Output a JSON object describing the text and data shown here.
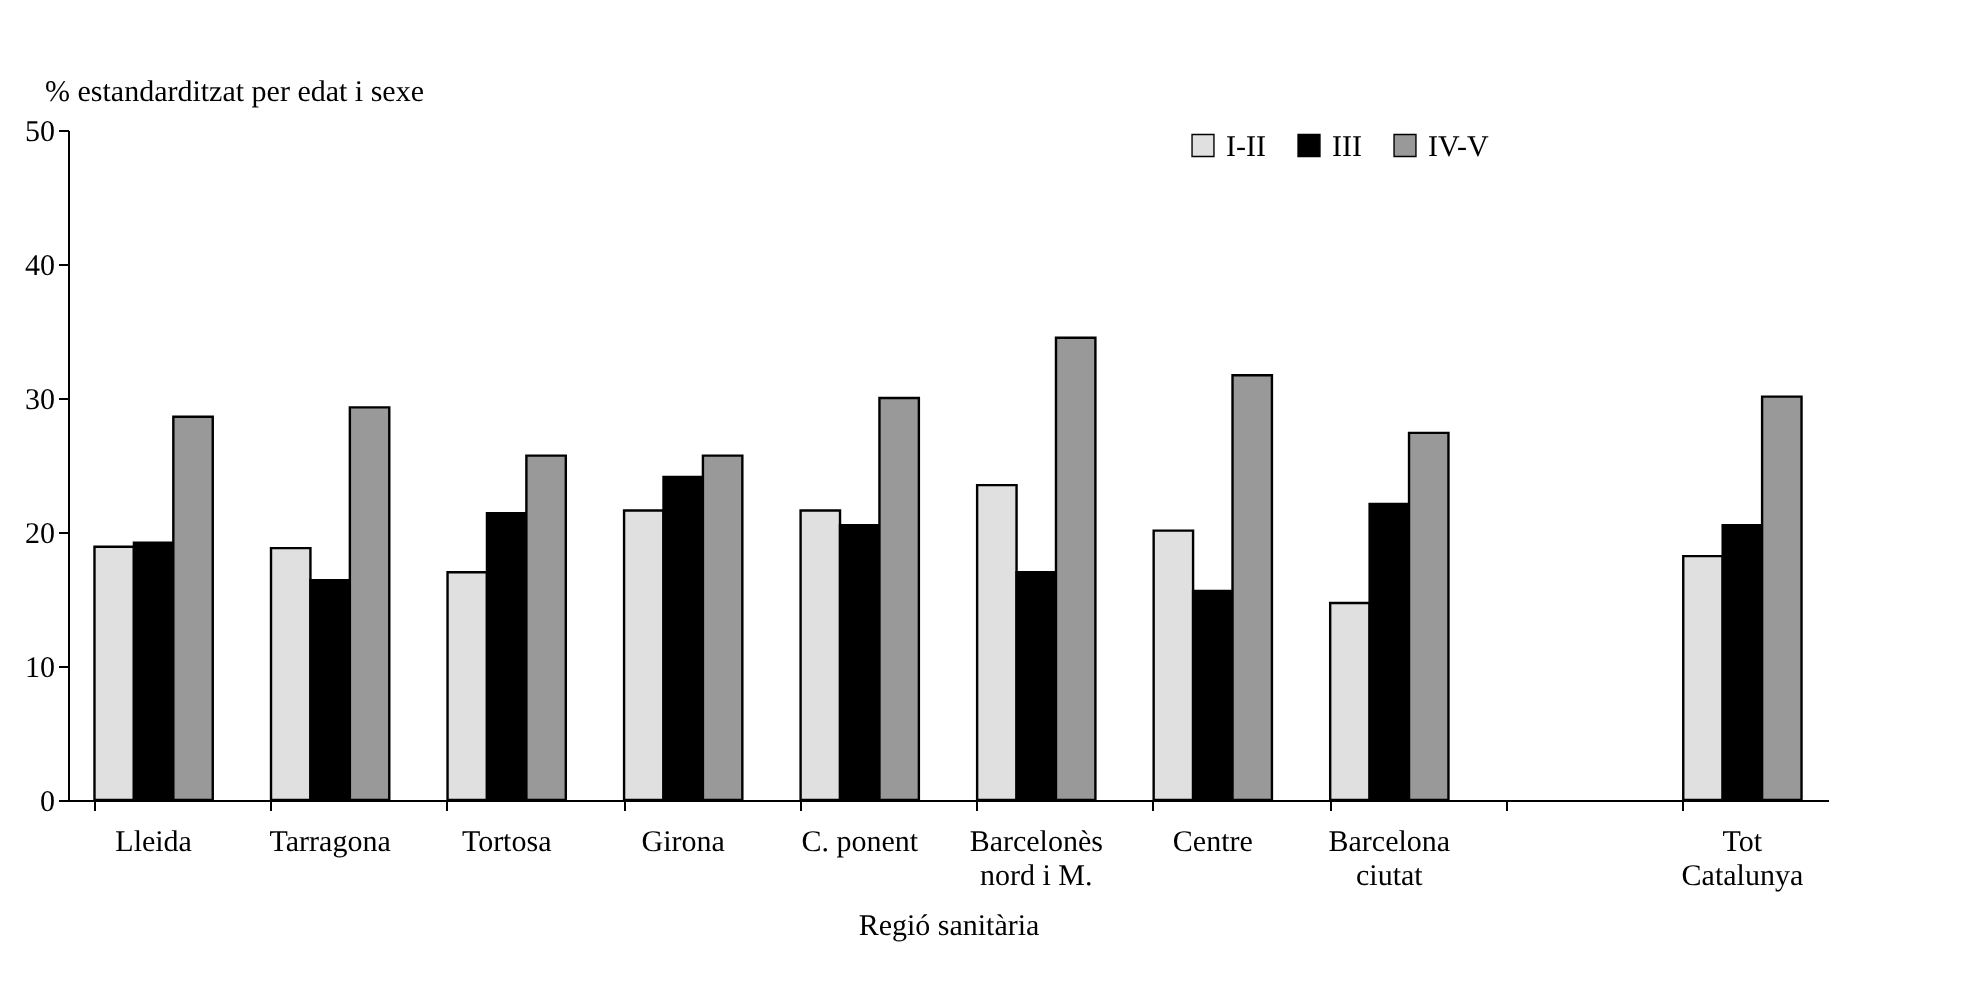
{
  "chart_data": {
    "type": "bar",
    "ylabel": "% estandarditzat per edat i sexe",
    "xlabel": "Regió sanitària",
    "categories": [
      "Lleida",
      "Tarragona",
      "Tortosa",
      "Girona",
      "C. ponent",
      "Barcelonès\nnord i M.",
      "Centre",
      "Barcelona\nciutat",
      null,
      "Tot\nCatalunya"
    ],
    "series": [
      {
        "name": "I-II",
        "color": "#e0e0e0",
        "values": [
          18.9,
          18.8,
          17.0,
          21.6,
          21.6,
          23.5,
          20.1,
          14.7,
          null,
          18.2
        ]
      },
      {
        "name": "III",
        "color": "#000000",
        "values": [
          19.2,
          16.4,
          21.4,
          24.1,
          20.5,
          17.0,
          15.6,
          22.1,
          null,
          20.5
        ]
      },
      {
        "name": "IV-V",
        "color": "#999999",
        "values": [
          28.6,
          29.3,
          25.7,
          25.7,
          30.0,
          34.5,
          31.7,
          27.4,
          null,
          30.1
        ]
      }
    ],
    "ylim": [
      0,
      50
    ],
    "yticks": [
      0,
      10,
      20,
      30,
      40,
      50
    ],
    "grid": false,
    "legend": "top right"
  }
}
